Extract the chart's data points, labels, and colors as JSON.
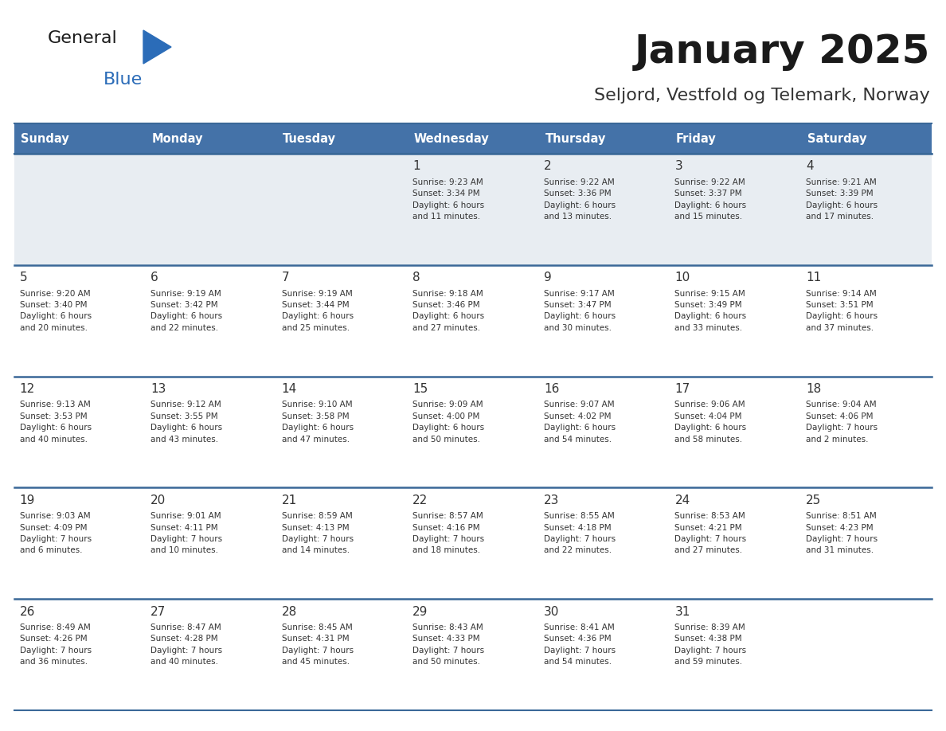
{
  "title": "January 2025",
  "subtitle": "Seljord, Vestfold og Telemark, Norway",
  "header_color": "#4472a8",
  "header_text_color": "#ffffff",
  "row0_bg": "#e8edf2",
  "row_bg": "#ffffff",
  "border_color": "#3a6898",
  "text_color": "#333333",
  "logo_general_color": "#1a1a1a",
  "logo_blue_color": "#2b6cb8",
  "logo_triangle_color": "#2b6cb8",
  "days_of_week": [
    "Sunday",
    "Monday",
    "Tuesday",
    "Wednesday",
    "Thursday",
    "Friday",
    "Saturday"
  ],
  "calendar_data": [
    [
      {
        "day": "",
        "info": ""
      },
      {
        "day": "",
        "info": ""
      },
      {
        "day": "",
        "info": ""
      },
      {
        "day": "1",
        "info": "Sunrise: 9:23 AM\nSunset: 3:34 PM\nDaylight: 6 hours\nand 11 minutes."
      },
      {
        "day": "2",
        "info": "Sunrise: 9:22 AM\nSunset: 3:36 PM\nDaylight: 6 hours\nand 13 minutes."
      },
      {
        "day": "3",
        "info": "Sunrise: 9:22 AM\nSunset: 3:37 PM\nDaylight: 6 hours\nand 15 minutes."
      },
      {
        "day": "4",
        "info": "Sunrise: 9:21 AM\nSunset: 3:39 PM\nDaylight: 6 hours\nand 17 minutes."
      }
    ],
    [
      {
        "day": "5",
        "info": "Sunrise: 9:20 AM\nSunset: 3:40 PM\nDaylight: 6 hours\nand 20 minutes."
      },
      {
        "day": "6",
        "info": "Sunrise: 9:19 AM\nSunset: 3:42 PM\nDaylight: 6 hours\nand 22 minutes."
      },
      {
        "day": "7",
        "info": "Sunrise: 9:19 AM\nSunset: 3:44 PM\nDaylight: 6 hours\nand 25 minutes."
      },
      {
        "day": "8",
        "info": "Sunrise: 9:18 AM\nSunset: 3:46 PM\nDaylight: 6 hours\nand 27 minutes."
      },
      {
        "day": "9",
        "info": "Sunrise: 9:17 AM\nSunset: 3:47 PM\nDaylight: 6 hours\nand 30 minutes."
      },
      {
        "day": "10",
        "info": "Sunrise: 9:15 AM\nSunset: 3:49 PM\nDaylight: 6 hours\nand 33 minutes."
      },
      {
        "day": "11",
        "info": "Sunrise: 9:14 AM\nSunset: 3:51 PM\nDaylight: 6 hours\nand 37 minutes."
      }
    ],
    [
      {
        "day": "12",
        "info": "Sunrise: 9:13 AM\nSunset: 3:53 PM\nDaylight: 6 hours\nand 40 minutes."
      },
      {
        "day": "13",
        "info": "Sunrise: 9:12 AM\nSunset: 3:55 PM\nDaylight: 6 hours\nand 43 minutes."
      },
      {
        "day": "14",
        "info": "Sunrise: 9:10 AM\nSunset: 3:58 PM\nDaylight: 6 hours\nand 47 minutes."
      },
      {
        "day": "15",
        "info": "Sunrise: 9:09 AM\nSunset: 4:00 PM\nDaylight: 6 hours\nand 50 minutes."
      },
      {
        "day": "16",
        "info": "Sunrise: 9:07 AM\nSunset: 4:02 PM\nDaylight: 6 hours\nand 54 minutes."
      },
      {
        "day": "17",
        "info": "Sunrise: 9:06 AM\nSunset: 4:04 PM\nDaylight: 6 hours\nand 58 minutes."
      },
      {
        "day": "18",
        "info": "Sunrise: 9:04 AM\nSunset: 4:06 PM\nDaylight: 7 hours\nand 2 minutes."
      }
    ],
    [
      {
        "day": "19",
        "info": "Sunrise: 9:03 AM\nSunset: 4:09 PM\nDaylight: 7 hours\nand 6 minutes."
      },
      {
        "day": "20",
        "info": "Sunrise: 9:01 AM\nSunset: 4:11 PM\nDaylight: 7 hours\nand 10 minutes."
      },
      {
        "day": "21",
        "info": "Sunrise: 8:59 AM\nSunset: 4:13 PM\nDaylight: 7 hours\nand 14 minutes."
      },
      {
        "day": "22",
        "info": "Sunrise: 8:57 AM\nSunset: 4:16 PM\nDaylight: 7 hours\nand 18 minutes."
      },
      {
        "day": "23",
        "info": "Sunrise: 8:55 AM\nSunset: 4:18 PM\nDaylight: 7 hours\nand 22 minutes."
      },
      {
        "day": "24",
        "info": "Sunrise: 8:53 AM\nSunset: 4:21 PM\nDaylight: 7 hours\nand 27 minutes."
      },
      {
        "day": "25",
        "info": "Sunrise: 8:51 AM\nSunset: 4:23 PM\nDaylight: 7 hours\nand 31 minutes."
      }
    ],
    [
      {
        "day": "26",
        "info": "Sunrise: 8:49 AM\nSunset: 4:26 PM\nDaylight: 7 hours\nand 36 minutes."
      },
      {
        "day": "27",
        "info": "Sunrise: 8:47 AM\nSunset: 4:28 PM\nDaylight: 7 hours\nand 40 minutes."
      },
      {
        "day": "28",
        "info": "Sunrise: 8:45 AM\nSunset: 4:31 PM\nDaylight: 7 hours\nand 45 minutes."
      },
      {
        "day": "29",
        "info": "Sunrise: 8:43 AM\nSunset: 4:33 PM\nDaylight: 7 hours\nand 50 minutes."
      },
      {
        "day": "30",
        "info": "Sunrise: 8:41 AM\nSunset: 4:36 PM\nDaylight: 7 hours\nand 54 minutes."
      },
      {
        "day": "31",
        "info": "Sunrise: 8:39 AM\nSunset: 4:38 PM\nDaylight: 7 hours\nand 59 minutes."
      },
      {
        "day": "",
        "info": ""
      }
    ]
  ],
  "figsize": [
    11.88,
    9.18
  ],
  "dpi": 100
}
